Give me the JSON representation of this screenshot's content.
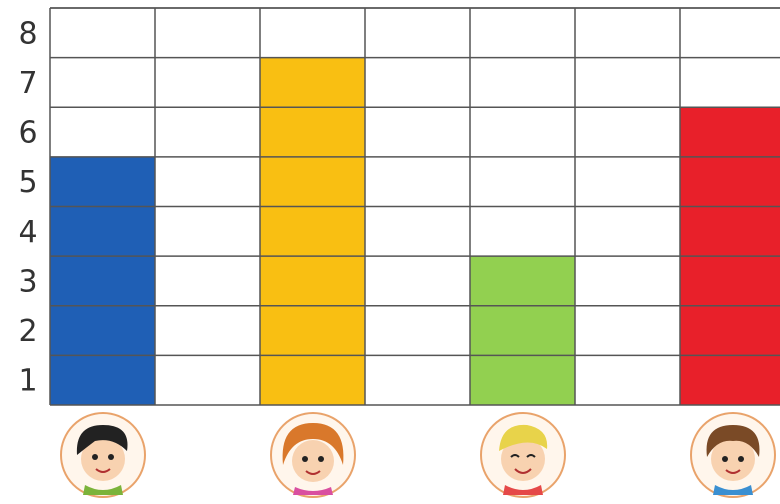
{
  "chart_data": {
    "type": "bar",
    "categories": [
      null,
      null,
      null,
      null,
      null,
      null,
      null
    ],
    "values": [
      5,
      null,
      7,
      null,
      3,
      null,
      6
    ],
    "colors": [
      "#1f5fb5",
      null,
      "#f9bf12",
      null,
      "#92d050",
      null,
      "#e8202a"
    ],
    "ylim": [
      0,
      8
    ],
    "yticks": [
      1,
      2,
      3,
      4,
      5,
      6,
      7,
      8
    ],
    "grid": true
  }
}
